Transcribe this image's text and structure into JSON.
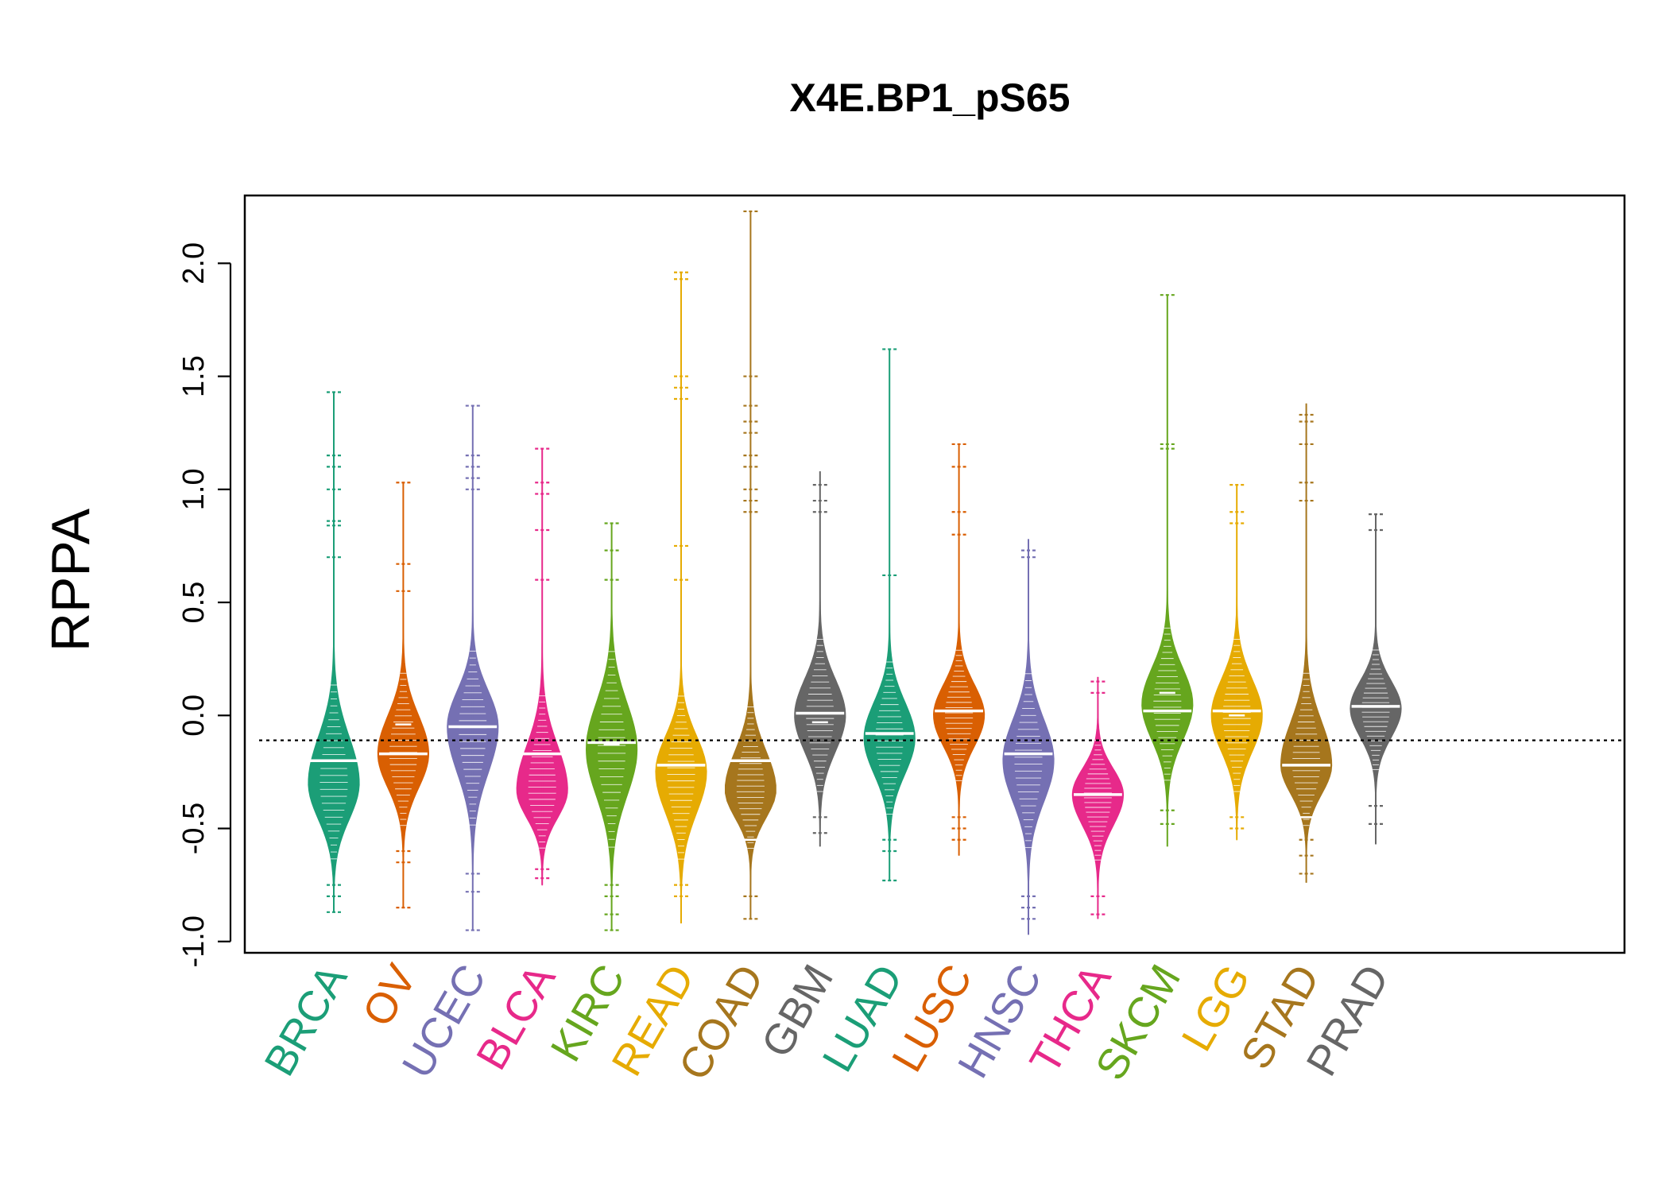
{
  "chart_data": {
    "type": "beanplot",
    "title": "X4E.BP1_pS65",
    "xlabel": "",
    "ylabel": "RPPA",
    "ylim": [
      -1.05,
      2.3
    ],
    "yticks": [
      -1.0,
      -0.5,
      0.0,
      0.5,
      1.0,
      1.5,
      2.0
    ],
    "ytick_labels": [
      "-1.0",
      "-0.5",
      "0.0",
      "0.5",
      "1.0",
      "1.5",
      "2.0"
    ],
    "reference_line": -0.11,
    "grid": false,
    "legend": "none",
    "categories": [
      "BRCA",
      "OV",
      "UCEC",
      "BLCA",
      "KIRC",
      "READ",
      "COAD",
      "GBM",
      "LUAD",
      "LUSC",
      "HNSC",
      "THCA",
      "SKCM",
      "LGG",
      "STAD",
      "PRAD"
    ],
    "series": [
      {
        "name": "BRCA",
        "color": "#1B9E77",
        "min": -0.87,
        "max": 1.43,
        "mode": -0.3,
        "mean": -0.2,
        "median": -0.2,
        "body_low": -0.65,
        "body_high": 0.15,
        "outliers": [
          1.43,
          1.15,
          1.1,
          1.0,
          0.86,
          0.84,
          0.7,
          -0.75,
          -0.8,
          -0.87
        ]
      },
      {
        "name": "OV",
        "color": "#D95F02",
        "min": -0.85,
        "max": 1.03,
        "mode": -0.17,
        "mean": -0.17,
        "median": -0.04,
        "body_low": -0.5,
        "body_high": 0.2,
        "outliers": [
          1.03,
          0.67,
          0.55,
          -0.6,
          -0.65,
          -0.85
        ]
      },
      {
        "name": "UCEC",
        "color": "#7570B3",
        "min": -0.95,
        "max": 1.37,
        "mode": -0.05,
        "mean": -0.05,
        "median": -0.05,
        "body_low": -0.5,
        "body_high": 0.3,
        "outliers": [
          1.37,
          1.15,
          1.1,
          1.05,
          1.0,
          -0.7,
          -0.78,
          -0.95
        ]
      },
      {
        "name": "BLCA",
        "color": "#E7298A",
        "min": -0.75,
        "max": 1.18,
        "mode": -0.33,
        "mean": -0.17,
        "median": -0.17,
        "body_low": -0.6,
        "body_high": 0.1,
        "outliers": [
          1.18,
          1.03,
          0.98,
          0.82,
          0.6,
          -0.68,
          -0.72
        ]
      },
      {
        "name": "KIRC",
        "color": "#66A61E",
        "min": -0.95,
        "max": 0.85,
        "mode": -0.15,
        "mean": -0.12,
        "median": -0.13,
        "body_low": -0.6,
        "body_high": 0.3,
        "outliers": [
          0.85,
          0.73,
          0.6,
          -0.75,
          -0.8,
          -0.88,
          -0.95
        ]
      },
      {
        "name": "READ",
        "color": "#E6AB02",
        "min": -0.92,
        "max": 1.96,
        "mode": -0.25,
        "mean": -0.22,
        "median": -0.22,
        "body_low": -0.65,
        "body_high": 0.1,
        "outliers": [
          1.96,
          1.93,
          1.5,
          1.45,
          1.4,
          0.75,
          0.6,
          -0.75,
          -0.8
        ]
      },
      {
        "name": "COAD",
        "color": "#A6761D",
        "min": -0.9,
        "max": 2.23,
        "mode": -0.33,
        "mean": -0.2,
        "median": -0.55,
        "body_low": -0.6,
        "body_high": 0.05,
        "outliers": [
          2.23,
          1.5,
          1.37,
          1.3,
          1.25,
          1.15,
          1.1,
          1.0,
          0.95,
          0.9,
          -0.8,
          -0.9
        ]
      },
      {
        "name": "GBM",
        "color": "#666666",
        "min": -0.58,
        "max": 1.08,
        "mode": 0.0,
        "mean": 0.01,
        "median": -0.03,
        "body_low": -0.35,
        "body_high": 0.35,
        "outliers": [
          1.02,
          0.95,
          0.9,
          -0.45,
          -0.52
        ]
      },
      {
        "name": "LUAD",
        "color": "#1B9E77",
        "min": -0.73,
        "max": 1.62,
        "mode": -0.1,
        "mean": -0.08,
        "median": -0.08,
        "body_low": -0.45,
        "body_high": 0.25,
        "outliers": [
          1.62,
          0.62,
          -0.55,
          -0.6,
          -0.73
        ]
      },
      {
        "name": "LUSC",
        "color": "#D95F02",
        "min": -0.62,
        "max": 1.2,
        "mode": 0.0,
        "mean": 0.02,
        "median": 0.02,
        "body_low": -0.3,
        "body_high": 0.3,
        "outliers": [
          1.2,
          1.1,
          0.9,
          0.8,
          -0.45,
          -0.5,
          -0.55
        ]
      },
      {
        "name": "HNSC",
        "color": "#7570B3",
        "min": -0.97,
        "max": 0.78,
        "mode": -0.2,
        "mean": -0.17,
        "median": -0.17,
        "body_low": -0.6,
        "body_high": 0.2,
        "outliers": [
          0.73,
          0.7,
          -0.8,
          -0.85,
          -0.9
        ]
      },
      {
        "name": "THCA",
        "color": "#E7298A",
        "min": -0.9,
        "max": 0.17,
        "mode": -0.35,
        "mean": -0.35,
        "median": -0.35,
        "body_low": -0.65,
        "body_high": -0.1,
        "outliers": [
          0.15,
          0.1,
          -0.8,
          -0.88
        ]
      },
      {
        "name": "SKCM",
        "color": "#66A61E",
        "min": -0.58,
        "max": 1.86,
        "mode": 0.05,
        "mean": 0.02,
        "median": 0.1,
        "body_low": -0.3,
        "body_high": 0.4,
        "outliers": [
          1.86,
          1.2,
          1.18,
          -0.42,
          -0.48
        ]
      },
      {
        "name": "LGG",
        "color": "#E6AB02",
        "min": -0.55,
        "max": 1.02,
        "mode": 0.0,
        "mean": 0.02,
        "median": 0.0,
        "body_low": -0.35,
        "body_high": 0.35,
        "outliers": [
          1.02,
          0.9,
          0.85,
          -0.45,
          -0.5
        ]
      },
      {
        "name": "STAD",
        "color": "#A6761D",
        "min": -0.74,
        "max": 1.38,
        "mode": -0.22,
        "mean": -0.22,
        "median": -0.45,
        "body_low": -0.5,
        "body_high": 0.2,
        "outliers": [
          1.33,
          1.3,
          1.2,
          1.03,
          0.95,
          -0.55,
          -0.62,
          -0.7
        ]
      },
      {
        "name": "PRAD",
        "color": "#666666",
        "min": -0.57,
        "max": 0.89,
        "mode": 0.03,
        "mean": 0.04,
        "median": 0.04,
        "body_low": -0.25,
        "body_high": 0.3,
        "outliers": [
          0.89,
          0.82,
          -0.4,
          -0.48
        ]
      }
    ]
  }
}
